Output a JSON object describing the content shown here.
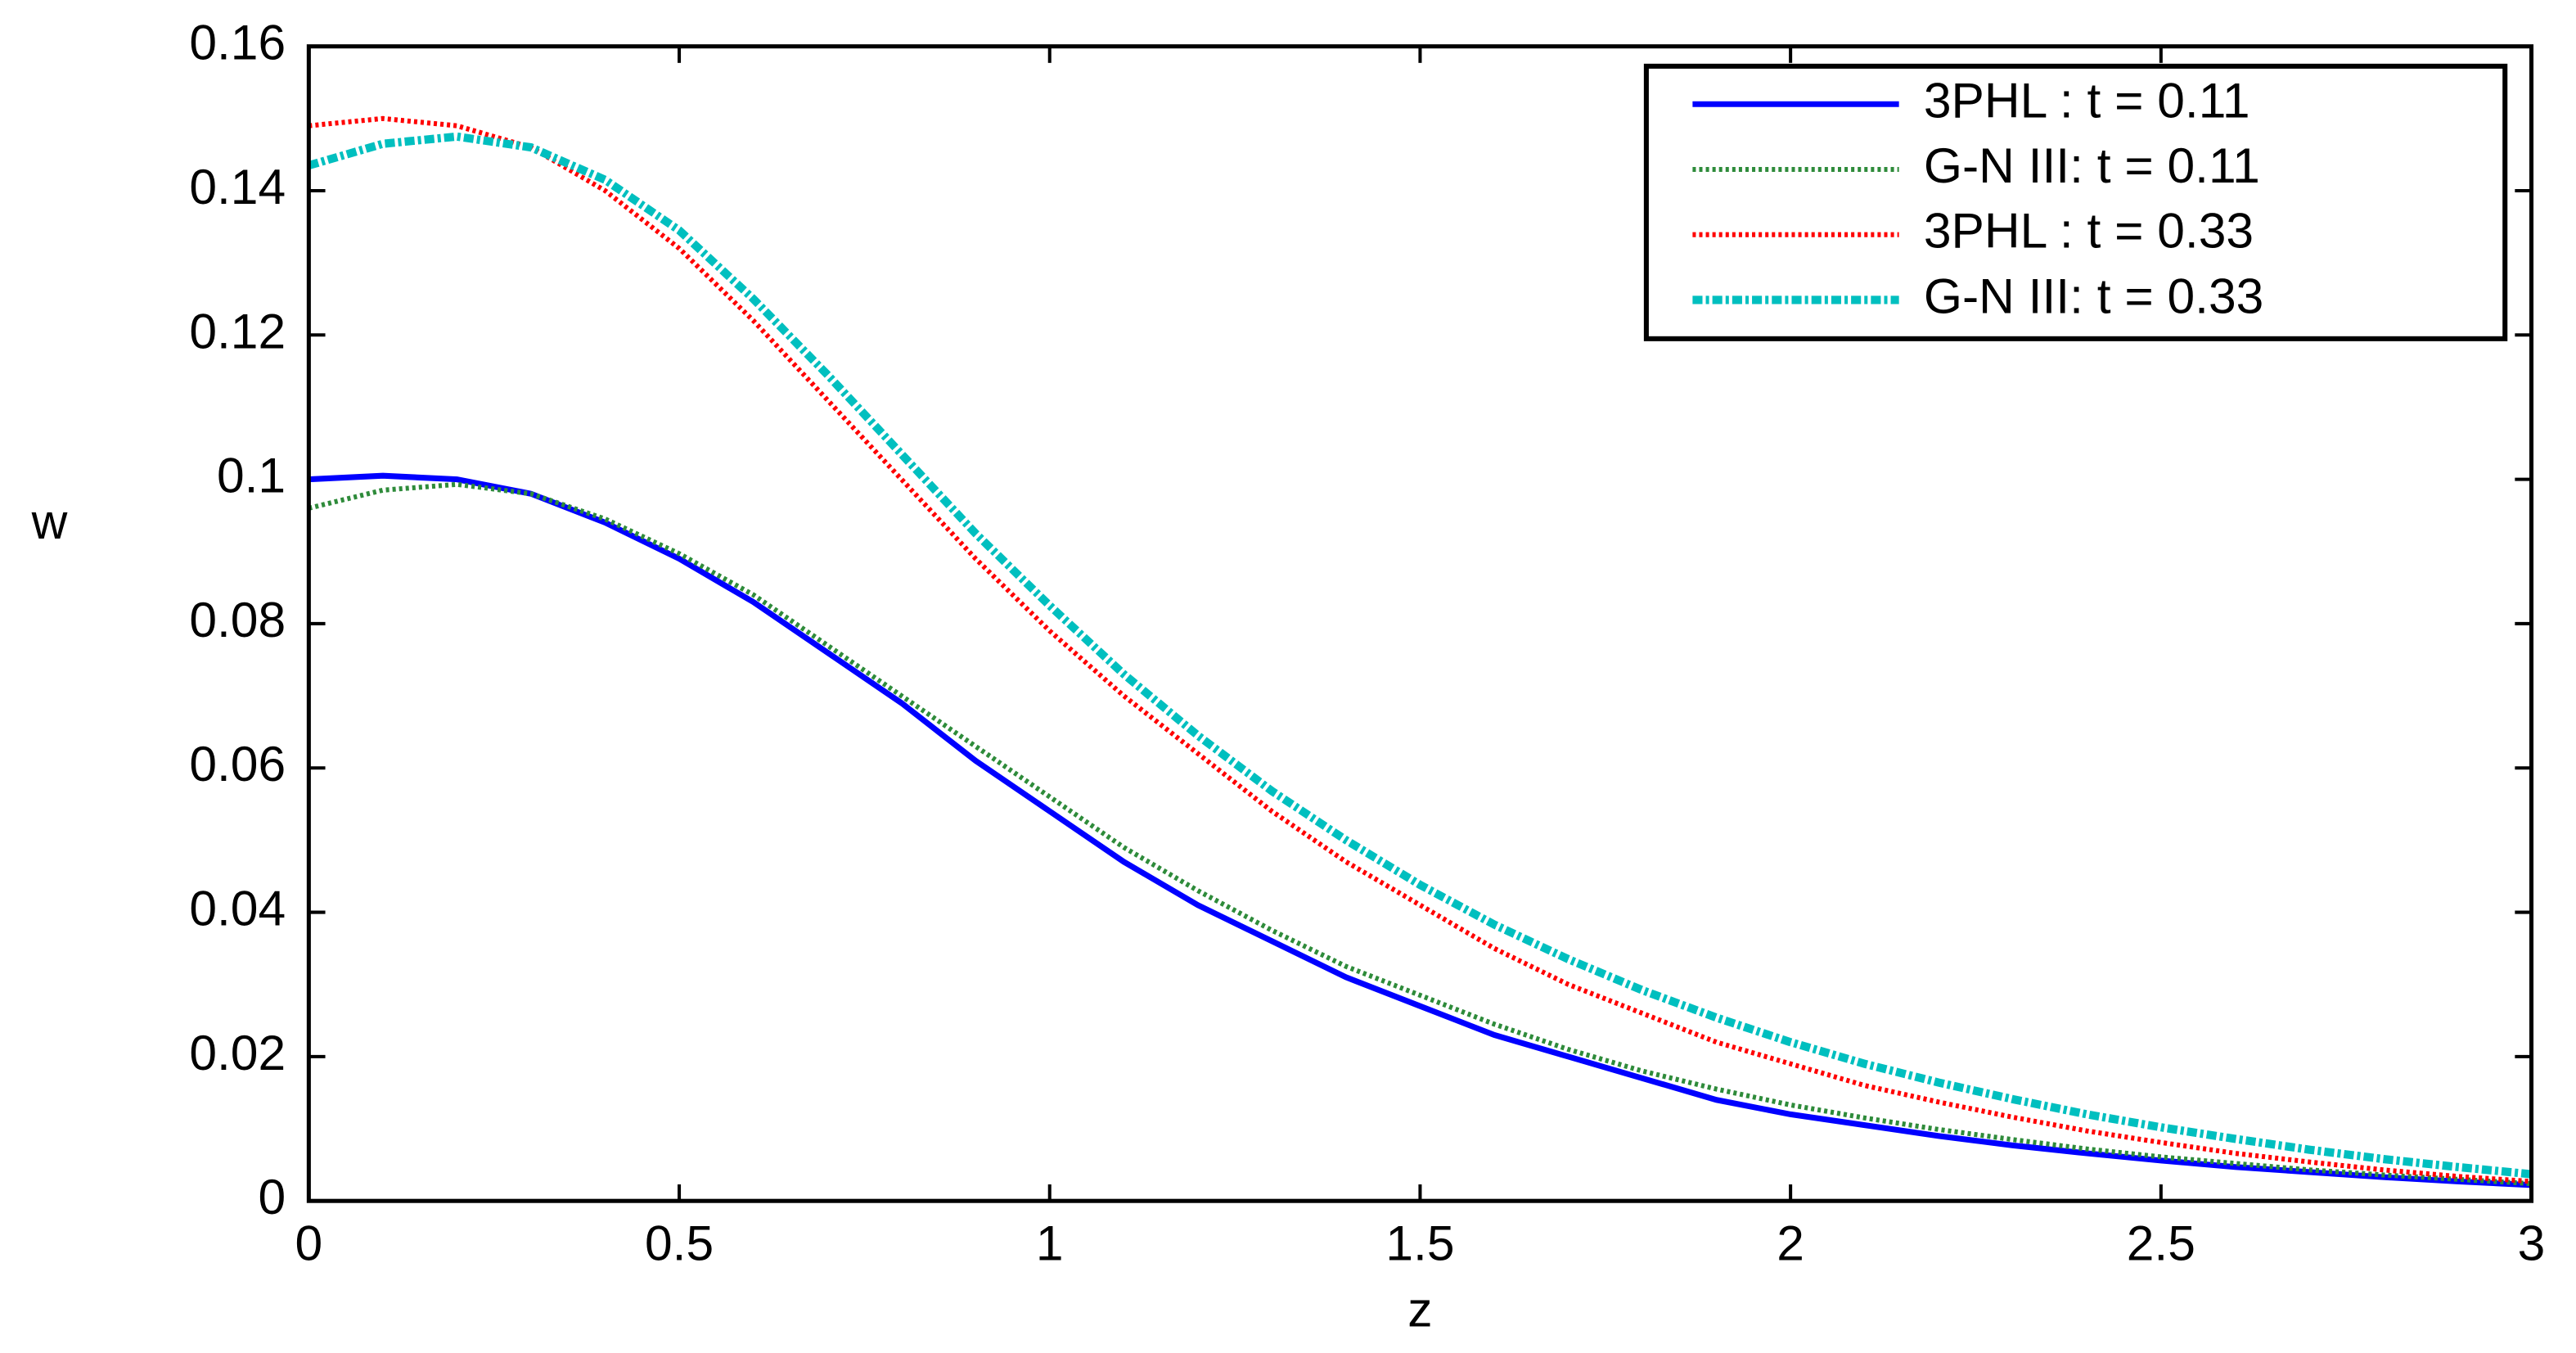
{
  "chart_data": {
    "type": "line",
    "xlabel": "z",
    "ylabel": "w",
    "x": [
      0,
      0.1,
      0.2,
      0.3,
      0.4,
      0.5,
      0.6,
      0.7,
      0.8,
      0.9,
      1.0,
      1.1,
      1.2,
      1.3,
      1.4,
      1.5,
      1.6,
      1.7,
      1.8,
      1.9,
      2.0,
      2.1,
      2.2,
      2.3,
      2.4,
      2.5,
      2.6,
      2.7,
      2.8,
      2.9,
      3.0
    ],
    "series": [
      {
        "name": "3PHL : t = 0.11",
        "color": "#0000ff",
        "style": "solid",
        "values": [
          0.1,
          0.1005,
          0.1,
          0.098,
          0.094,
          0.089,
          0.083,
          0.076,
          0.069,
          0.061,
          0.054,
          0.047,
          0.041,
          0.036,
          0.031,
          0.027,
          0.023,
          0.02,
          0.017,
          0.014,
          0.012,
          0.0105,
          0.009,
          0.0077,
          0.0066,
          0.0056,
          0.0047,
          0.004,
          0.0033,
          0.0027,
          0.0022
        ]
      },
      {
        "name": "G-N III: t = 0.11",
        "color": "#2e8b3a",
        "style": "dotted",
        "values": [
          0.096,
          0.0985,
          0.0993,
          0.098,
          0.0945,
          0.0897,
          0.084,
          0.077,
          0.07,
          0.063,
          0.056,
          0.049,
          0.043,
          0.0375,
          0.0325,
          0.0285,
          0.0245,
          0.021,
          0.018,
          0.0155,
          0.0133,
          0.0115,
          0.0099,
          0.0085,
          0.0072,
          0.0061,
          0.0052,
          0.0043,
          0.0036,
          0.003,
          0.0024
        ]
      },
      {
        "name": "3PHL : t = 0.33",
        "color": "#ff0000",
        "style": "dotted",
        "values": [
          0.149,
          0.15,
          0.149,
          0.146,
          0.14,
          0.132,
          0.122,
          0.111,
          0.1,
          0.089,
          0.079,
          0.07,
          0.062,
          0.054,
          0.047,
          0.041,
          0.035,
          0.03,
          0.026,
          0.022,
          0.019,
          0.016,
          0.0137,
          0.0116,
          0.0097,
          0.0081,
          0.0066,
          0.0054,
          0.0043,
          0.0034,
          0.0027
        ]
      },
      {
        "name": "G-N III: t = 0.33",
        "color": "#00bfbf",
        "style": "dashdot",
        "values": [
          0.1435,
          0.1465,
          0.1475,
          0.146,
          0.1415,
          0.1345,
          0.125,
          0.1145,
          0.1035,
          0.0925,
          0.0825,
          0.073,
          0.0645,
          0.0568,
          0.05,
          0.0438,
          0.0383,
          0.0335,
          0.0292,
          0.0254,
          0.022,
          0.019,
          0.0164,
          0.0141,
          0.012,
          0.0102,
          0.0086,
          0.0071,
          0.0058,
          0.0047,
          0.0037
        ]
      }
    ],
    "xlim": [
      0,
      3
    ],
    "xticks": [
      0,
      0.5,
      1,
      1.5,
      2,
      2.5,
      3
    ],
    "ylim": [
      0,
      0.16
    ],
    "yticks": [
      0,
      0.02,
      0.04,
      0.06,
      0.08,
      0.1,
      0.12,
      0.14,
      0.16
    ],
    "grid": false,
    "legend": "upper right"
  }
}
